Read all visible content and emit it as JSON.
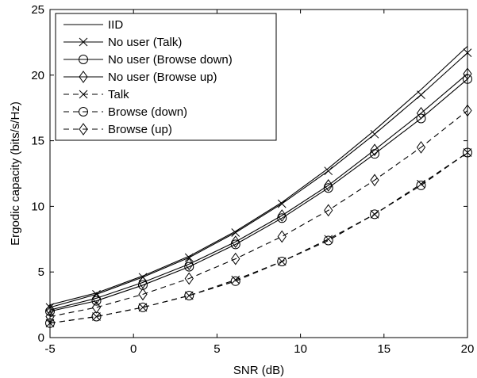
{
  "chart_data": {
    "type": "line",
    "title": "",
    "xlabel": "SNR (dB)",
    "ylabel": "Ergodic capacity (bits/s/Hz)",
    "xlim": [
      -5,
      20
    ],
    "ylim": [
      0,
      25
    ],
    "xticks": [
      -5,
      0,
      5,
      10,
      15,
      20
    ],
    "yticks": [
      0,
      5,
      10,
      15,
      20,
      25
    ],
    "grid": false,
    "legend_position": "top-left",
    "x": [
      -5,
      -2.22,
      0.56,
      3.33,
      6.11,
      8.89,
      11.67,
      14.44,
      17.22,
      20
    ],
    "series": [
      {
        "name": "IID",
        "line": "solid",
        "marker": "none",
        "y": [
          2.5,
          3.4,
          4.7,
          6.2,
          8.1,
          10.3,
          12.9,
          15.8,
          18.9,
          22.2
        ]
      },
      {
        "name": "No user (Talk)",
        "line": "solid",
        "marker": "x",
        "y": [
          2.3,
          3.3,
          4.6,
          6.1,
          8.0,
          10.2,
          12.7,
          15.5,
          18.5,
          21.7
        ]
      },
      {
        "name": "No user (Browse down)",
        "line": "solid",
        "marker": "circle",
        "y": [
          2.0,
          2.8,
          4.0,
          5.4,
          7.1,
          9.1,
          11.4,
          14.0,
          16.7,
          19.7
        ]
      },
      {
        "name": "No user (Browse up)",
        "line": "solid",
        "marker": "diamond",
        "y": [
          2.1,
          3.0,
          4.2,
          5.6,
          7.3,
          9.3,
          11.6,
          14.3,
          17.1,
          20.1
        ]
      },
      {
        "name": "Talk",
        "line": "dashed",
        "marker": "x",
        "y": [
          1.1,
          1.6,
          2.3,
          3.2,
          4.4,
          5.8,
          7.5,
          9.4,
          11.7,
          14.1
        ]
      },
      {
        "name": "Browse (down)",
        "line": "dashed",
        "marker": "circle",
        "y": [
          1.1,
          1.6,
          2.3,
          3.2,
          4.3,
          5.8,
          7.4,
          9.4,
          11.6,
          14.1
        ]
      },
      {
        "name": "Browse (up)",
        "line": "dashed",
        "marker": "diamond",
        "y": [
          1.6,
          2.3,
          3.3,
          4.5,
          6.0,
          7.7,
          9.7,
          12.0,
          14.5,
          17.3
        ]
      }
    ]
  }
}
